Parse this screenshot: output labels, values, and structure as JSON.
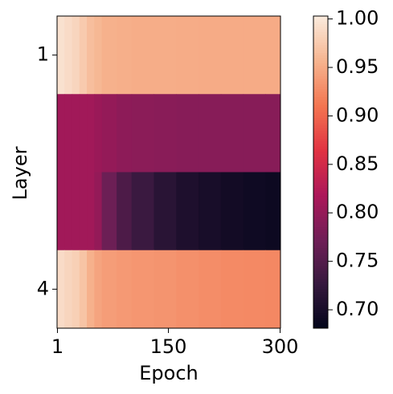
{
  "chart_data": {
    "type": "heatmap",
    "xlabel": "Epoch",
    "ylabel": "Layer",
    "x": [
      1,
      11,
      21,
      31,
      41,
      51,
      61,
      81,
      101,
      131,
      161,
      191,
      221,
      251,
      281
    ],
    "xlim": [
      0.5,
      300.5
    ],
    "xticks": [
      1,
      150,
      300
    ],
    "categories": [
      "1",
      null,
      null,
      "4"
    ],
    "z": [
      [
        0.995,
        0.99,
        0.985,
        0.975,
        0.965,
        0.96,
        0.955,
        0.953,
        0.952,
        0.952,
        0.951,
        0.95,
        0.95,
        0.95,
        0.95
      ],
      [
        0.81,
        0.81,
        0.81,
        0.81,
        0.81,
        0.805,
        0.8,
        0.795,
        0.793,
        0.792,
        0.79,
        0.79,
        0.79,
        0.79,
        0.79
      ],
      [
        0.81,
        0.81,
        0.81,
        0.81,
        0.81,
        0.8,
        0.77,
        0.745,
        0.73,
        0.715,
        0.705,
        0.7,
        0.695,
        0.692,
        0.69
      ],
      [
        0.99,
        0.985,
        0.98,
        0.97,
        0.955,
        0.945,
        0.94,
        0.937,
        0.935,
        0.933,
        0.93,
        0.928,
        0.926,
        0.925,
        0.924
      ]
    ],
    "clim": [
      0.681,
      1.003
    ],
    "cticks": [
      {
        "value": 0.7,
        "label": "0.70"
      },
      {
        "value": 0.75,
        "label": "0.75"
      },
      {
        "value": 0.8,
        "label": "0.80"
      },
      {
        "value": 0.85,
        "label": "0.85"
      },
      {
        "value": 0.9,
        "label": "0.90"
      },
      {
        "value": 0.95,
        "label": "0.95"
      },
      {
        "value": 1.0,
        "label": "1.00"
      }
    ],
    "colormap": [
      "#03051a",
      "#36193e",
      "#701f57",
      "#ad1759",
      "#e13342",
      "#f37651",
      "#f6b48f",
      "#faebdd"
    ]
  }
}
